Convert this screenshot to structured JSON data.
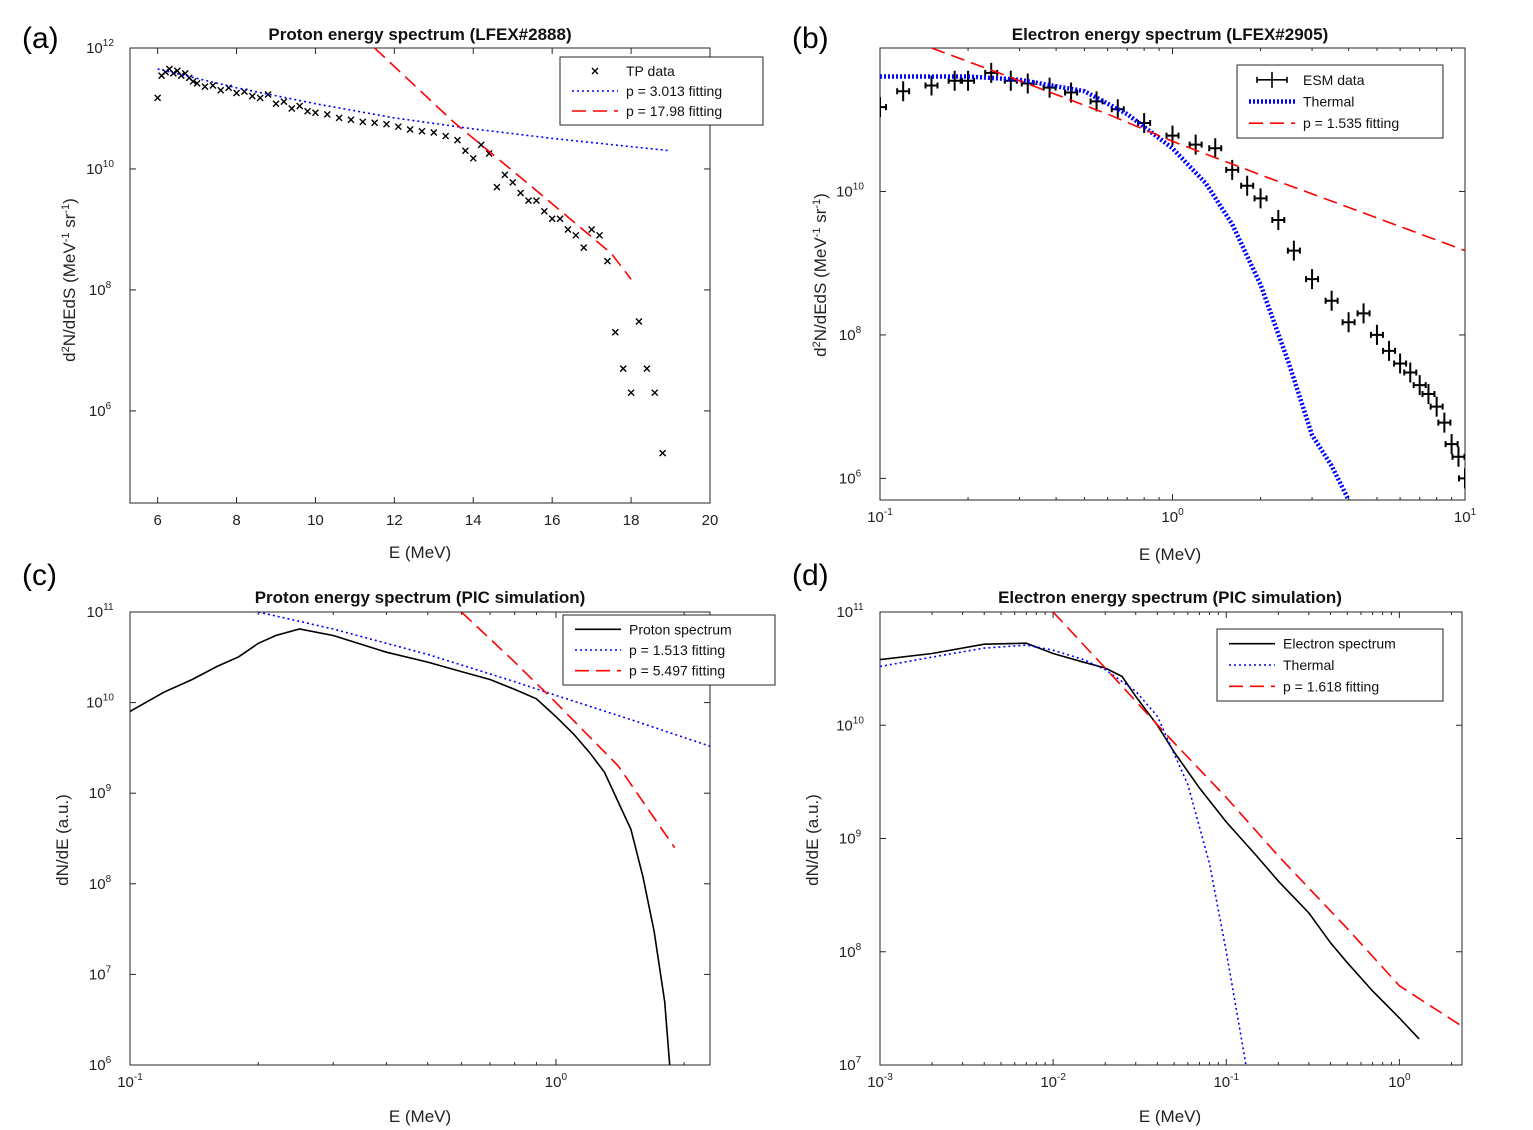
{
  "chart_data": [
    {
      "panel": "(a)",
      "type": "scatter",
      "title": "Proton energy spectrum (LFEX#2888)",
      "xlabel": "E (MeV)",
      "ylabel": "d^2N/dEdS (MeV^-1 sr^-1)",
      "xscale": "linear",
      "yscale": "log",
      "xlim": [
        5.3,
        20
      ],
      "ylim": [
        30000.0,
        1000000000000.0
      ],
      "xticks": [
        6,
        8,
        10,
        12,
        14,
        16,
        18,
        20
      ],
      "yticks": [
        1000000.0,
        100000000.0,
        10000000000.0,
        1000000000000.0
      ],
      "legend_position": "top-right",
      "series": [
        {
          "name": "TP data",
          "style": "markers-x",
          "color": "#000000",
          "x": [
            6.0,
            6.1,
            6.2,
            6.3,
            6.4,
            6.5,
            6.6,
            6.7,
            6.8,
            6.9,
            7.0,
            7.2,
            7.4,
            7.6,
            7.8,
            8.0,
            8.2,
            8.4,
            8.6,
            8.8,
            9.0,
            9.2,
            9.4,
            9.6,
            9.8,
            10.0,
            10.3,
            10.6,
            10.9,
            11.2,
            11.5,
            11.8,
            12.1,
            12.4,
            12.7,
            13.0,
            13.3,
            13.6,
            13.8,
            14.0,
            14.2,
            14.4,
            14.6,
            14.8,
            15.0,
            15.2,
            15.4,
            15.6,
            15.8,
            16.0,
            16.2,
            16.4,
            16.6,
            16.8,
            17.0,
            17.2,
            17.4,
            17.6,
            17.8,
            18.0,
            18.2,
            18.4,
            18.6,
            18.8
          ],
          "y": [
            150000000000.0,
            350000000000.0,
            400000000000.0,
            450000000000.0,
            380000000000.0,
            420000000000.0,
            350000000000.0,
            380000000000.0,
            320000000000.0,
            280000000000.0,
            260000000000.0,
            230000000000.0,
            240000000000.0,
            200000000000.0,
            220000000000.0,
            180000000000.0,
            190000000000.0,
            160000000000.0,
            150000000000.0,
            170000000000.0,
            120000000000.0,
            130000000000.0,
            100000000000.0,
            110000000000.0,
            90000000000.0,
            85000000000.0,
            80000000000.0,
            70000000000.0,
            65000000000.0,
            60000000000.0,
            58000000000.0,
            55000000000.0,
            50000000000.0,
            45000000000.0,
            42000000000.0,
            40000000000.0,
            35000000000.0,
            30000000000.0,
            20000000000.0,
            15000000000.0,
            25000000000.0,
            18000000000.0,
            5000000000.0,
            8000000000.0,
            6000000000.0,
            4000000000.0,
            3000000000.0,
            3000000000.0,
            2000000000.0,
            1500000000.0,
            1500000000.0,
            1000000000.0,
            800000000.0,
            500000000.0,
            1000000000.0,
            800000000.0,
            300000000.0,
            20000000.0,
            5000000.0,
            2000000.0,
            30000000.0,
            5000000.0,
            2000000.0,
            200000.0
          ]
        },
        {
          "name": "p = 3.013 fitting",
          "style": "dotted",
          "color": "#0000ff",
          "x": [
            6.0,
            8.0,
            10.0,
            12.0,
            14.0,
            16.0,
            19.0
          ],
          "y": [
            450000000000.0,
            220000000000.0,
            120000000000.0,
            70000000000.0,
            46000000000.0,
            32000000000.0,
            20000000000.0
          ]
        },
        {
          "name": "p = 17.98 fitting",
          "style": "dashed",
          "color": "#ff0000",
          "x": [
            11.5,
            13.5,
            15.5,
            17.5,
            18.0
          ],
          "y": [
            1000000000000.0,
            60000000000.0,
            5000000000.0,
            400000000.0,
            150000000.0
          ]
        }
      ]
    },
    {
      "panel": "(b)",
      "type": "scatter",
      "title": "Electron energy spectrum (LFEX#2905)",
      "xlabel": "E (MeV)",
      "ylabel": "d^2N/dEdS (MeV^-1 sr^-1)",
      "xscale": "log",
      "yscale": "log",
      "xlim": [
        0.1,
        10
      ],
      "ylim": [
        500000.0,
        1000000000000.0
      ],
      "xticks": [
        0.1,
        1,
        10
      ],
      "yticks": [
        1000000.0,
        100000000.0,
        10000000000.0
      ],
      "legend_position": "top-right",
      "series": [
        {
          "name": "ESM data",
          "style": "errorbars",
          "color": "#000000",
          "x": [
            0.1,
            0.12,
            0.15,
            0.18,
            0.2,
            0.24,
            0.28,
            0.32,
            0.38,
            0.45,
            0.55,
            0.65,
            0.8,
            1.0,
            1.2,
            1.4,
            1.6,
            1.8,
            2.0,
            2.3,
            2.6,
            3.0,
            3.5,
            4.0,
            4.5,
            5.0,
            5.5,
            6.0,
            6.5,
            7.0,
            7.5,
            8.0,
            8.5,
            9.0,
            9.5,
            10.0
          ],
          "y": [
            150000000000.0,
            250000000000.0,
            300000000000.0,
            350000000000.0,
            350000000000.0,
            450000000000.0,
            350000000000.0,
            320000000000.0,
            280000000000.0,
            240000000000.0,
            180000000000.0,
            140000000000.0,
            90000000000.0,
            60000000000.0,
            45000000000.0,
            40000000000.0,
            20000000000.0,
            12000000000.0,
            8000000000.0,
            4000000000.0,
            1500000000.0,
            600000000.0,
            300000000.0,
            150000000.0,
            200000000.0,
            100000000.0,
            60000000.0,
            40000000.0,
            30000000.0,
            20000000.0,
            15000000.0,
            10000000.0,
            6000000.0,
            3000000.0,
            2000000.0,
            1000000.0
          ]
        },
        {
          "name": "Thermal",
          "style": "dotted-thick",
          "color": "#0000ff",
          "x": [
            0.1,
            0.2,
            0.3,
            0.5,
            0.7,
            1.0,
            1.3,
            1.6,
            2.0,
            2.5,
            3.0,
            3.5,
            4.0
          ],
          "y": [
            400000000000.0,
            400000000000.0,
            360000000000.0,
            250000000000.0,
            120000000000.0,
            40000000000.0,
            13000000000.0,
            3500000000.0,
            500000000.0,
            40000000.0,
            4000000.0,
            1500000.0,
            500000.0
          ]
        },
        {
          "name": "p = 1.535 fitting",
          "style": "dashed",
          "color": "#ff0000",
          "x": [
            0.15,
            0.3,
            0.6,
            1.0,
            2.0,
            4.0,
            10.0
          ],
          "y": [
            1000000000000.0,
            350000000000.0,
            120000000000.0,
            50000000000.0,
            17000000000.0,
            6000000000.0,
            1500000000.0
          ]
        }
      ]
    },
    {
      "panel": "(c)",
      "type": "line",
      "title": "Proton energy spectrum (PIC simulation)",
      "xlabel": "E (MeV)",
      "ylabel": "dN/dE (a.u.)",
      "xscale": "log",
      "yscale": "log",
      "xlim": [
        0.1,
        2.3
      ],
      "ylim": [
        1000000.0,
        100000000000.0
      ],
      "xticks": [
        0.1,
        1
      ],
      "yticks": [
        1000000.0,
        10000000.0,
        100000000.0,
        1000000000.0,
        10000000000.0,
        100000000000.0
      ],
      "legend_position": "top-right",
      "series": [
        {
          "name": "Proton spectrum",
          "style": "solid",
          "color": "#000000",
          "x": [
            0.1,
            0.12,
            0.14,
            0.16,
            0.18,
            0.2,
            0.22,
            0.25,
            0.3,
            0.4,
            0.5,
            0.6,
            0.7,
            0.8,
            0.9,
            1.0,
            1.1,
            1.2,
            1.3,
            1.4,
            1.5,
            1.6,
            1.7,
            1.8,
            1.85
          ],
          "y": [
            8000000000.0,
            13000000000.0,
            18000000000.0,
            25000000000.0,
            32000000000.0,
            45000000000.0,
            55000000000.0,
            65000000000.0,
            55000000000.0,
            36000000000.0,
            28000000000.0,
            22000000000.0,
            18000000000.0,
            14000000000.0,
            11000000000.0,
            7000000000.0,
            4500000000.0,
            2800000000.0,
            1700000000.0,
            800000000.0,
            400000000.0,
            120000000.0,
            30000000.0,
            5000000.0,
            1000000.0
          ]
        },
        {
          "name": "p = 1.513 fitting",
          "style": "dotted",
          "color": "#0000ff",
          "x": [
            0.2,
            0.3,
            0.5,
            0.8,
            1.0,
            1.5,
            2.3
          ],
          "y": [
            100000000000.0,
            65000000000.0,
            34000000000.0,
            17000000000.0,
            12000000000.0,
            6500000000.0,
            3300000000.0
          ]
        },
        {
          "name": "p = 5.497 fitting",
          "style": "dashed",
          "color": "#ff0000",
          "x": [
            0.6,
            0.8,
            1.0,
            1.4,
            1.9
          ],
          "y": [
            100000000000.0,
            28000000000.0,
            10000000000.0,
            2000000000.0,
            250000000.0
          ]
        }
      ]
    },
    {
      "panel": "(d)",
      "type": "line",
      "title": "Electron energy spectrum (PIC simulation)",
      "xlabel": "E (MeV)",
      "ylabel": "dN/dE (a.u.)",
      "xscale": "log",
      "yscale": "log",
      "xlim": [
        0.001,
        2.3
      ],
      "ylim": [
        10000000.0,
        100000000000.0
      ],
      "xticks": [
        0.001,
        0.01,
        0.1,
        1
      ],
      "yticks": [
        10000000.0,
        100000000.0,
        1000000000.0,
        10000000000.0,
        100000000000.0
      ],
      "legend_position": "top-right",
      "series": [
        {
          "name": "Electron spectrum",
          "style": "solid",
          "color": "#000000",
          "x": [
            0.001,
            0.002,
            0.004,
            0.007,
            0.01,
            0.015,
            0.02,
            0.025,
            0.03,
            0.04,
            0.05,
            0.07,
            0.1,
            0.15,
            0.2,
            0.3,
            0.4,
            0.5,
            0.7,
            1.0,
            1.3
          ],
          "y": [
            38000000000.0,
            43000000000.0,
            52000000000.0,
            53000000000.0,
            43000000000.0,
            36000000000.0,
            32000000000.0,
            27000000000.0,
            18000000000.0,
            10000000000.0,
            5800000000.0,
            2800000000.0,
            1400000000.0,
            700000000.0,
            420000000.0,
            220000000.0,
            120000000.0,
            80000000.0,
            45000000.0,
            26000000.0,
            17000000.0
          ]
        },
        {
          "name": "Thermal",
          "style": "dotted",
          "color": "#0000ff",
          "x": [
            0.001,
            0.002,
            0.004,
            0.007,
            0.01,
            0.015,
            0.02,
            0.03,
            0.04,
            0.06,
            0.08,
            0.1,
            0.13
          ],
          "y": [
            33000000000.0,
            40000000000.0,
            48000000000.0,
            51000000000.0,
            46000000000.0,
            38000000000.0,
            31000000000.0,
            20000000000.0,
            12000000000.0,
            3000000000.0,
            600000000.0,
            100000000.0,
            10000000.0
          ]
        },
        {
          "name": "p = 1.618 fitting",
          "style": "dashed",
          "color": "#ff0000",
          "x": [
            0.01,
            0.02,
            0.05,
            0.1,
            0.2,
            0.5,
            1.0,
            2.3
          ],
          "y": [
            100000000000.0,
            32000000000.0,
            7000000000.0,
            2300000000.0,
            700000000.0,
            160000000.0,
            50000000.0,
            22000000.0
          ]
        }
      ]
    }
  ]
}
